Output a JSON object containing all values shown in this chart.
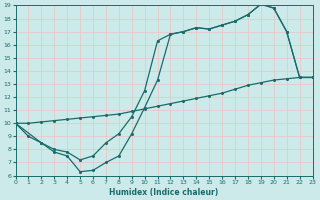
{
  "xlabel": "Humidex (Indice chaleur)",
  "xlim": [
    0,
    23
  ],
  "ylim": [
    6,
    19
  ],
  "xticks": [
    0,
    1,
    2,
    3,
    4,
    5,
    6,
    7,
    8,
    9,
    10,
    11,
    12,
    13,
    14,
    15,
    16,
    17,
    18,
    19,
    20,
    21,
    22,
    23
  ],
  "yticks": [
    6,
    7,
    8,
    9,
    10,
    11,
    12,
    13,
    14,
    15,
    16,
    17,
    18,
    19
  ],
  "bg_color": "#cceaea",
  "grid_color": "#e8c8c8",
  "line_color": "#1a6b6b",
  "line1_x": [
    0,
    1,
    2,
    3,
    4,
    5,
    6,
    7,
    8,
    9,
    10,
    11,
    12,
    13,
    14,
    15,
    16,
    17,
    18,
    19,
    20,
    21,
    22,
    23
  ],
  "line1_y": [
    10,
    9,
    8.5,
    7.8,
    7.5,
    6.3,
    6.4,
    7.0,
    7.5,
    9.2,
    11.2,
    13.3,
    16.8,
    17.0,
    17.3,
    17.2,
    17.5,
    17.8,
    18.3,
    19.1,
    18.8,
    17.0,
    13.5,
    13.5
  ],
  "line2_x": [
    0,
    2,
    3,
    4,
    5,
    6,
    7,
    8,
    9,
    10,
    11,
    12,
    13,
    14,
    15,
    16,
    17,
    18,
    19,
    20,
    21,
    22,
    23
  ],
  "line2_y": [
    10,
    8.5,
    8.0,
    7.8,
    7.2,
    7.5,
    8.5,
    9.2,
    10.5,
    12.5,
    16.3,
    16.8,
    17.0,
    17.3,
    17.2,
    17.5,
    17.8,
    18.3,
    19.1,
    18.8,
    17.0,
    13.5,
    13.5
  ],
  "line3_x": [
    0,
    1,
    2,
    3,
    4,
    5,
    6,
    7,
    8,
    9,
    10,
    11,
    12,
    13,
    14,
    15,
    16,
    17,
    18,
    19,
    20,
    21,
    22,
    23
  ],
  "line3_y": [
    10,
    10.0,
    10.1,
    10.2,
    10.3,
    10.4,
    10.5,
    10.6,
    10.7,
    10.9,
    11.1,
    11.3,
    11.5,
    11.7,
    11.9,
    12.1,
    12.3,
    12.6,
    12.9,
    13.1,
    13.3,
    13.4,
    13.5,
    13.5
  ]
}
